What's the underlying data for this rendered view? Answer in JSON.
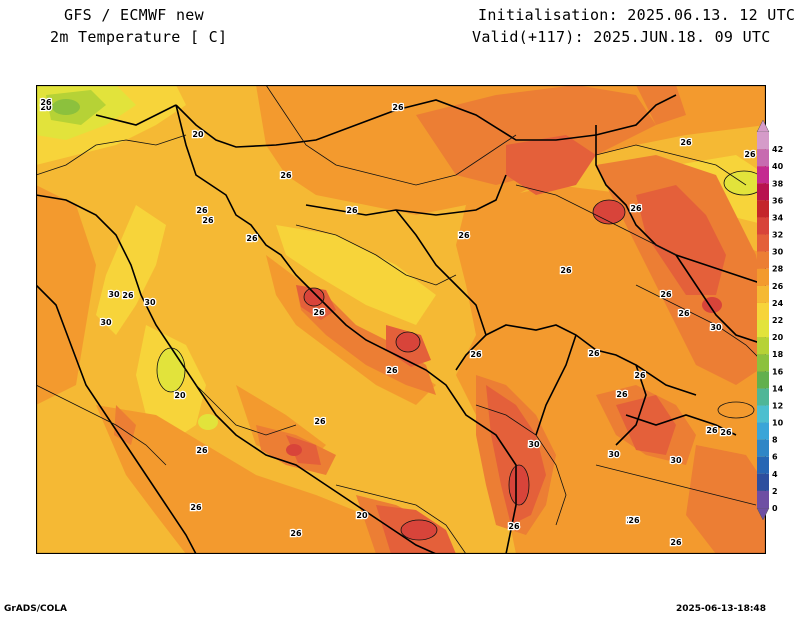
{
  "header": {
    "model": "GFS / ECMWF new",
    "variable": "2m Temperature [ C]",
    "init": "Initialisation: 2025.06.13. 12 UTC",
    "valid": "Valid(+117): 2025.JUN.18. 09 UTC"
  },
  "footer": {
    "left": "GrADS/COLA",
    "right": "2025-06-13-18:48"
  },
  "colorbar": {
    "levels": [
      "0",
      "2",
      "4",
      "6",
      "8",
      "10",
      "12",
      "14",
      "16",
      "18",
      "20",
      "22",
      "24",
      "26",
      "28",
      "30",
      "32",
      "34",
      "36",
      "38",
      "40",
      "42"
    ],
    "colors": [
      "#6e4fa3",
      "#2d4e9e",
      "#2666b4",
      "#2f86c6",
      "#3aa5d8",
      "#4dbfcf",
      "#4fb697",
      "#62b04e",
      "#8cc13d",
      "#b6d236",
      "#e2e33b",
      "#f7d43a",
      "#f5b934",
      "#f39a2e",
      "#ec7e34",
      "#e4603a",
      "#d8443a",
      "#c4262b",
      "#b8124e",
      "#c42a90",
      "#c76bb0",
      "#d59bc9"
    ]
  },
  "contour_labels": [
    {
      "text": "20"
    },
    {
      "text": "20"
    },
    {
      "text": "26"
    },
    {
      "text": "26"
    },
    {
      "text": "26"
    },
    {
      "text": "26"
    },
    {
      "text": "26"
    },
    {
      "text": "26"
    },
    {
      "text": "26"
    },
    {
      "text": "26"
    },
    {
      "text": "26"
    },
    {
      "text": "26"
    },
    {
      "text": "26"
    },
    {
      "text": "26"
    },
    {
      "text": "30"
    },
    {
      "text": "26"
    },
    {
      "text": "30"
    },
    {
      "text": "26"
    },
    {
      "text": "26"
    },
    {
      "text": "26"
    },
    {
      "text": "26"
    },
    {
      "text": "20"
    },
    {
      "text": "26"
    },
    {
      "text": "26"
    },
    {
      "text": "30"
    },
    {
      "text": "30"
    },
    {
      "text": "26"
    },
    {
      "text": "30"
    },
    {
      "text": "26"
    },
    {
      "text": "26"
    },
    {
      "text": "30"
    },
    {
      "text": "26"
    },
    {
      "text": "26"
    },
    {
      "text": "26"
    },
    {
      "text": "26"
    },
    {
      "text": "26"
    },
    {
      "text": "20"
    },
    {
      "text": "26"
    },
    {
      "text": "26"
    },
    {
      "text": "30"
    },
    {
      "text": "26"
    },
    {
      "text": "26"
    }
  ]
}
